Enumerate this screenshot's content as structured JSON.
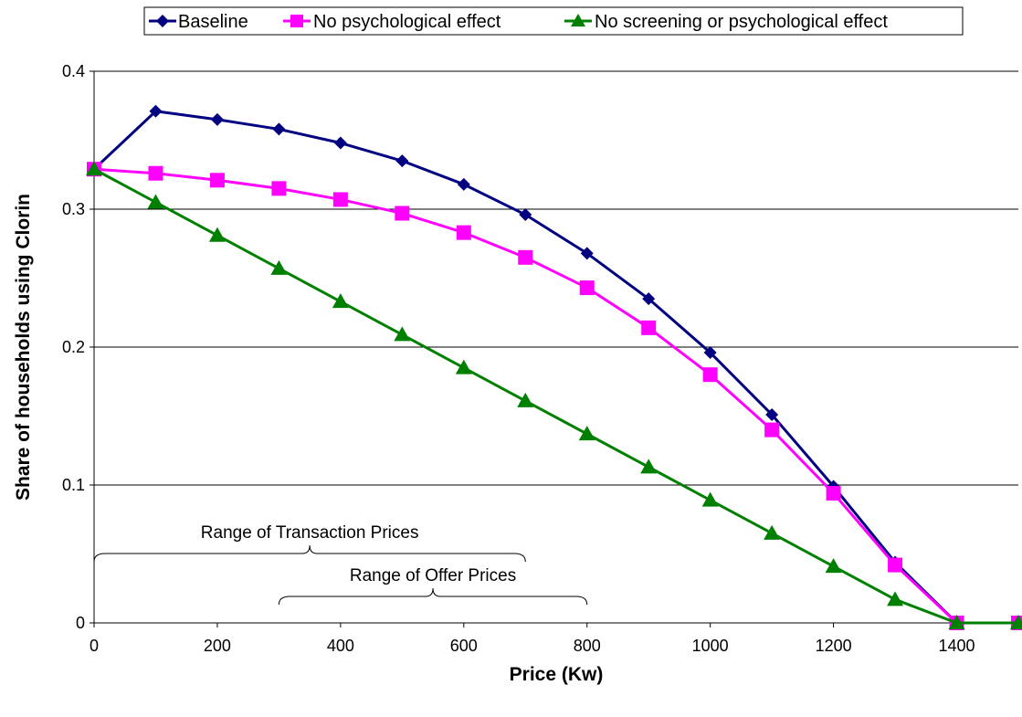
{
  "chart_data": {
    "type": "line",
    "title": "",
    "xlabel": "Price (Kw)",
    "ylabel": "Share of households using Clorin",
    "xlim": [
      0,
      1500
    ],
    "ylim": [
      0,
      0.4
    ],
    "x_ticks": [
      0,
      200,
      400,
      600,
      800,
      1000,
      1200,
      1400
    ],
    "x_tick_labels": [
      "0",
      "200",
      "400",
      "600",
      "800",
      "1000",
      "1200",
      "1400"
    ],
    "y_ticks": [
      0,
      0.1,
      0.2,
      0.3,
      0.4
    ],
    "y_tick_labels": [
      "0",
      "0.1",
      "0.2",
      "0.3",
      "0.4"
    ],
    "grid": "horizontal",
    "legend_position": "top",
    "x": [
      0,
      100,
      200,
      300,
      400,
      500,
      600,
      700,
      800,
      900,
      1000,
      1100,
      1200,
      1300,
      1400,
      1500
    ],
    "series": [
      {
        "name": "Baseline",
        "color": "#000080",
        "marker": "diamond",
        "values": [
          0.329,
          0.371,
          0.365,
          0.358,
          0.348,
          0.335,
          0.318,
          0.296,
          0.268,
          0.235,
          0.196,
          0.151,
          0.099,
          0.044,
          0.0,
          0.0
        ]
      },
      {
        "name": "No psychological effect",
        "color": "#FF00FF",
        "marker": "square",
        "values": [
          0.329,
          0.326,
          0.321,
          0.315,
          0.307,
          0.297,
          0.283,
          0.265,
          0.243,
          0.214,
          0.18,
          0.14,
          0.094,
          0.042,
          0.0,
          0.0
        ]
      },
      {
        "name": "No screening or psychological effect",
        "color": "#008000",
        "marker": "triangle",
        "values": [
          0.329,
          0.305,
          0.281,
          0.257,
          0.233,
          0.209,
          0.185,
          0.161,
          0.137,
          0.113,
          0.089,
          0.065,
          0.041,
          0.017,
          0.0,
          0.0
        ]
      }
    ],
    "annotations": [
      {
        "text": "Range of Transaction Prices",
        "x_start": 0,
        "x_end": 700
      },
      {
        "text": "Range of Offer Prices",
        "x_start": 300,
        "x_end": 800
      }
    ]
  }
}
